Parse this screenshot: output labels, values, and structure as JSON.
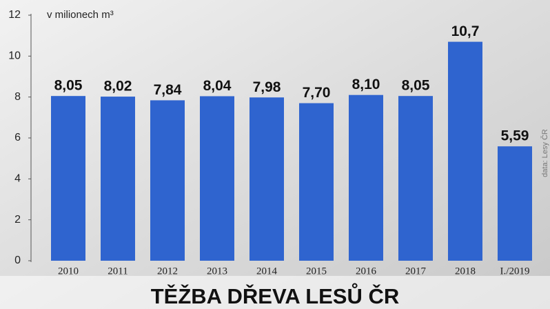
{
  "chart_data": {
    "type": "bar",
    "title": "TĚŽBA DŘEVA LESŮ ČR",
    "y_label": "v milionech m³",
    "source": "data: Lesy ČR",
    "categories": [
      "2010",
      "2011",
      "2012",
      "2013",
      "2014",
      "2015",
      "2016",
      "2017",
      "2018",
      "I./2019"
    ],
    "values": [
      8.05,
      8.02,
      7.84,
      8.04,
      7.98,
      7.7,
      8.1,
      8.05,
      10.7,
      5.59
    ],
    "value_labels": [
      "8,05",
      "8,02",
      "7,84",
      "8,04",
      "7,98",
      "7,70",
      "8,10",
      "8,05",
      "10,7",
      "5,59"
    ],
    "color": "#2f64cf",
    "ylim": [
      0,
      12
    ],
    "yticks": [
      0,
      2,
      4,
      6,
      8,
      10,
      12
    ],
    "grid": false
  }
}
